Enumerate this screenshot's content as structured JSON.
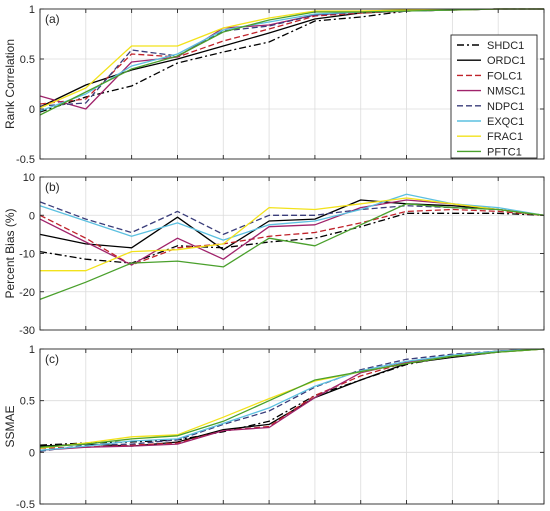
{
  "chart_data": [
    {
      "type": "line",
      "panel_label": "(a)",
      "ylabel": "Rank Correlation",
      "ylim": [
        -0.5,
        1
      ],
      "yticks": [
        -0.5,
        0,
        0.5,
        1
      ],
      "xlim": [
        1,
        12
      ],
      "grid": true,
      "legend": "inside-right",
      "x": [
        1,
        2,
        3,
        4,
        5,
        6,
        7,
        8,
        9,
        10,
        11,
        12
      ],
      "series": [
        {
          "name": "SHDC1",
          "values": [
            -0.03,
            0.12,
            0.23,
            0.46,
            0.57,
            0.67,
            0.88,
            0.92,
            0.98,
            0.99,
            1.0,
            1.0
          ]
        },
        {
          "name": "ORDC1",
          "values": [
            0.02,
            0.24,
            0.39,
            0.5,
            0.63,
            0.76,
            0.9,
            0.96,
            0.98,
            0.99,
            1.0,
            1.0
          ]
        },
        {
          "name": "FOLC1",
          "values": [
            0.05,
            0.1,
            0.55,
            0.52,
            0.68,
            0.8,
            0.93,
            0.96,
            0.98,
            0.99,
            1.0,
            1.0
          ]
        },
        {
          "name": "NMSC1",
          "values": [
            0.13,
            0.0,
            0.47,
            0.52,
            0.81,
            0.84,
            0.94,
            0.97,
            0.98,
            0.99,
            1.0,
            1.0
          ]
        },
        {
          "name": "NDPC1",
          "values": [
            0.03,
            0.06,
            0.59,
            0.53,
            0.78,
            0.83,
            0.94,
            0.97,
            0.98,
            0.99,
            1.0,
            1.0
          ]
        },
        {
          "name": "EXQC1",
          "values": [
            -0.02,
            0.15,
            0.43,
            0.55,
            0.79,
            0.87,
            0.95,
            0.97,
            0.98,
            0.99,
            1.0,
            1.0
          ]
        },
        {
          "name": "FRAC1",
          "values": [
            0.01,
            0.21,
            0.63,
            0.63,
            0.81,
            0.91,
            0.98,
            0.98,
            0.99,
            0.99,
            1.0,
            1.0
          ]
        },
        {
          "name": "PFTC1",
          "values": [
            -0.06,
            0.17,
            0.4,
            0.53,
            0.77,
            0.89,
            0.97,
            0.97,
            0.98,
            0.99,
            1.0,
            1.0
          ]
        }
      ]
    },
    {
      "type": "line",
      "panel_label": "(b)",
      "ylabel": "Percent Bias (%)",
      "ylim": [
        -30,
        10
      ],
      "yticks": [
        -30,
        -20,
        -10,
        0,
        10
      ],
      "xlim": [
        1,
        12
      ],
      "grid": true,
      "x": [
        1,
        2,
        3,
        4,
        5,
        6,
        7,
        8,
        9,
        10,
        11,
        12
      ],
      "series": [
        {
          "name": "SHDC1",
          "values": [
            -9.5,
            -11.5,
            -12.5,
            -8.0,
            -8.5,
            -7.0,
            -6.0,
            -3.0,
            0.5,
            0.5,
            0.5,
            0.0
          ]
        },
        {
          "name": "ORDC1",
          "values": [
            -5.0,
            -7.5,
            -8.5,
            -0.5,
            -9.0,
            -1.5,
            -1.0,
            4.0,
            3.0,
            2.5,
            1.5,
            0.0
          ]
        },
        {
          "name": "FOLC1",
          "values": [
            0.0,
            -6.0,
            -13.0,
            -8.5,
            -7.5,
            -5.5,
            -4.5,
            -2.0,
            1.0,
            1.5,
            1.0,
            0.0
          ]
        },
        {
          "name": "NMSC1",
          "values": [
            -1.0,
            -7.0,
            -13.0,
            -6.0,
            -11.5,
            -3.0,
            -2.5,
            2.0,
            4.0,
            3.0,
            1.5,
            0.0
          ]
        },
        {
          "name": "NDPC1",
          "values": [
            3.5,
            -1.0,
            -4.5,
            1.0,
            -5.0,
            0.0,
            0.0,
            1.5,
            2.5,
            2.0,
            1.5,
            0.0
          ]
        },
        {
          "name": "EXQC1",
          "values": [
            2.5,
            -1.5,
            -5.5,
            -2.0,
            -6.5,
            -2.5,
            -1.5,
            1.5,
            5.5,
            3.0,
            2.0,
            0.0
          ]
        },
        {
          "name": "FRAC1",
          "values": [
            -14.5,
            -14.5,
            -9.5,
            -9.0,
            -7.5,
            2.0,
            1.5,
            3.0,
            4.5,
            3.0,
            1.5,
            0.0
          ]
        },
        {
          "name": "PFTC1",
          "values": [
            -22.0,
            -17.5,
            -12.5,
            -12.0,
            -13.5,
            -6.0,
            -8.0,
            -2.5,
            3.0,
            2.0,
            1.5,
            0.0
          ]
        }
      ]
    },
    {
      "type": "line",
      "panel_label": "(c)",
      "ylabel": "SSMAE",
      "ylim": [
        -0.5,
        1
      ],
      "yticks": [
        -0.5,
        0,
        0.5,
        1
      ],
      "xlim": [
        1,
        12
      ],
      "grid": true,
      "x": [
        1,
        2,
        3,
        4,
        5,
        6,
        7,
        8,
        9,
        10,
        11,
        12
      ],
      "series": [
        {
          "name": "SHDC1",
          "values": [
            0.07,
            0.09,
            0.1,
            0.12,
            0.2,
            0.3,
            0.55,
            0.7,
            0.85,
            0.93,
            0.98,
            1.0
          ]
        },
        {
          "name": "ORDC1",
          "values": [
            0.06,
            0.08,
            0.06,
            0.1,
            0.22,
            0.27,
            0.53,
            0.7,
            0.86,
            0.92,
            0.97,
            1.0
          ]
        },
        {
          "name": "FOLC1",
          "values": [
            0.04,
            0.05,
            0.07,
            0.09,
            0.21,
            0.25,
            0.55,
            0.74,
            0.87,
            0.93,
            0.98,
            1.0
          ]
        },
        {
          "name": "NMSC1",
          "values": [
            0.02,
            0.05,
            0.06,
            0.08,
            0.21,
            0.24,
            0.53,
            0.77,
            0.87,
            0.93,
            0.98,
            1.0
          ]
        },
        {
          "name": "NDPC1",
          "values": [
            0.01,
            0.07,
            0.08,
            0.12,
            0.27,
            0.4,
            0.63,
            0.8,
            0.9,
            0.95,
            0.98,
            1.0
          ]
        },
        {
          "name": "EXQC1",
          "values": [
            0.02,
            0.06,
            0.11,
            0.13,
            0.28,
            0.43,
            0.64,
            0.79,
            0.88,
            0.94,
            0.98,
            1.0
          ]
        },
        {
          "name": "FRAC1",
          "values": [
            0.04,
            0.09,
            0.15,
            0.17,
            0.34,
            0.52,
            0.69,
            0.78,
            0.86,
            0.93,
            0.97,
            1.0
          ]
        },
        {
          "name": "PFTC1",
          "values": [
            0.05,
            0.08,
            0.13,
            0.16,
            0.3,
            0.5,
            0.7,
            0.78,
            0.86,
            0.93,
            0.97,
            1.0
          ]
        }
      ]
    }
  ],
  "series_styles": {
    "SHDC1": {
      "color": "#000000",
      "dash": "dashdot"
    },
    "ORDC1": {
      "color": "#000000",
      "dash": "solid"
    },
    "FOLC1": {
      "color": "#c0232b",
      "dash": "dashed"
    },
    "NMSC1": {
      "color": "#a0236b",
      "dash": "solid"
    },
    "NDPC1": {
      "color": "#3a3d7a",
      "dash": "dashed"
    },
    "EXQC1": {
      "color": "#5cc0e0",
      "dash": "solid"
    },
    "FRAC1": {
      "color": "#f2e21b",
      "dash": "solid"
    },
    "PFTC1": {
      "color": "#4aa02c",
      "dash": "solid"
    }
  }
}
